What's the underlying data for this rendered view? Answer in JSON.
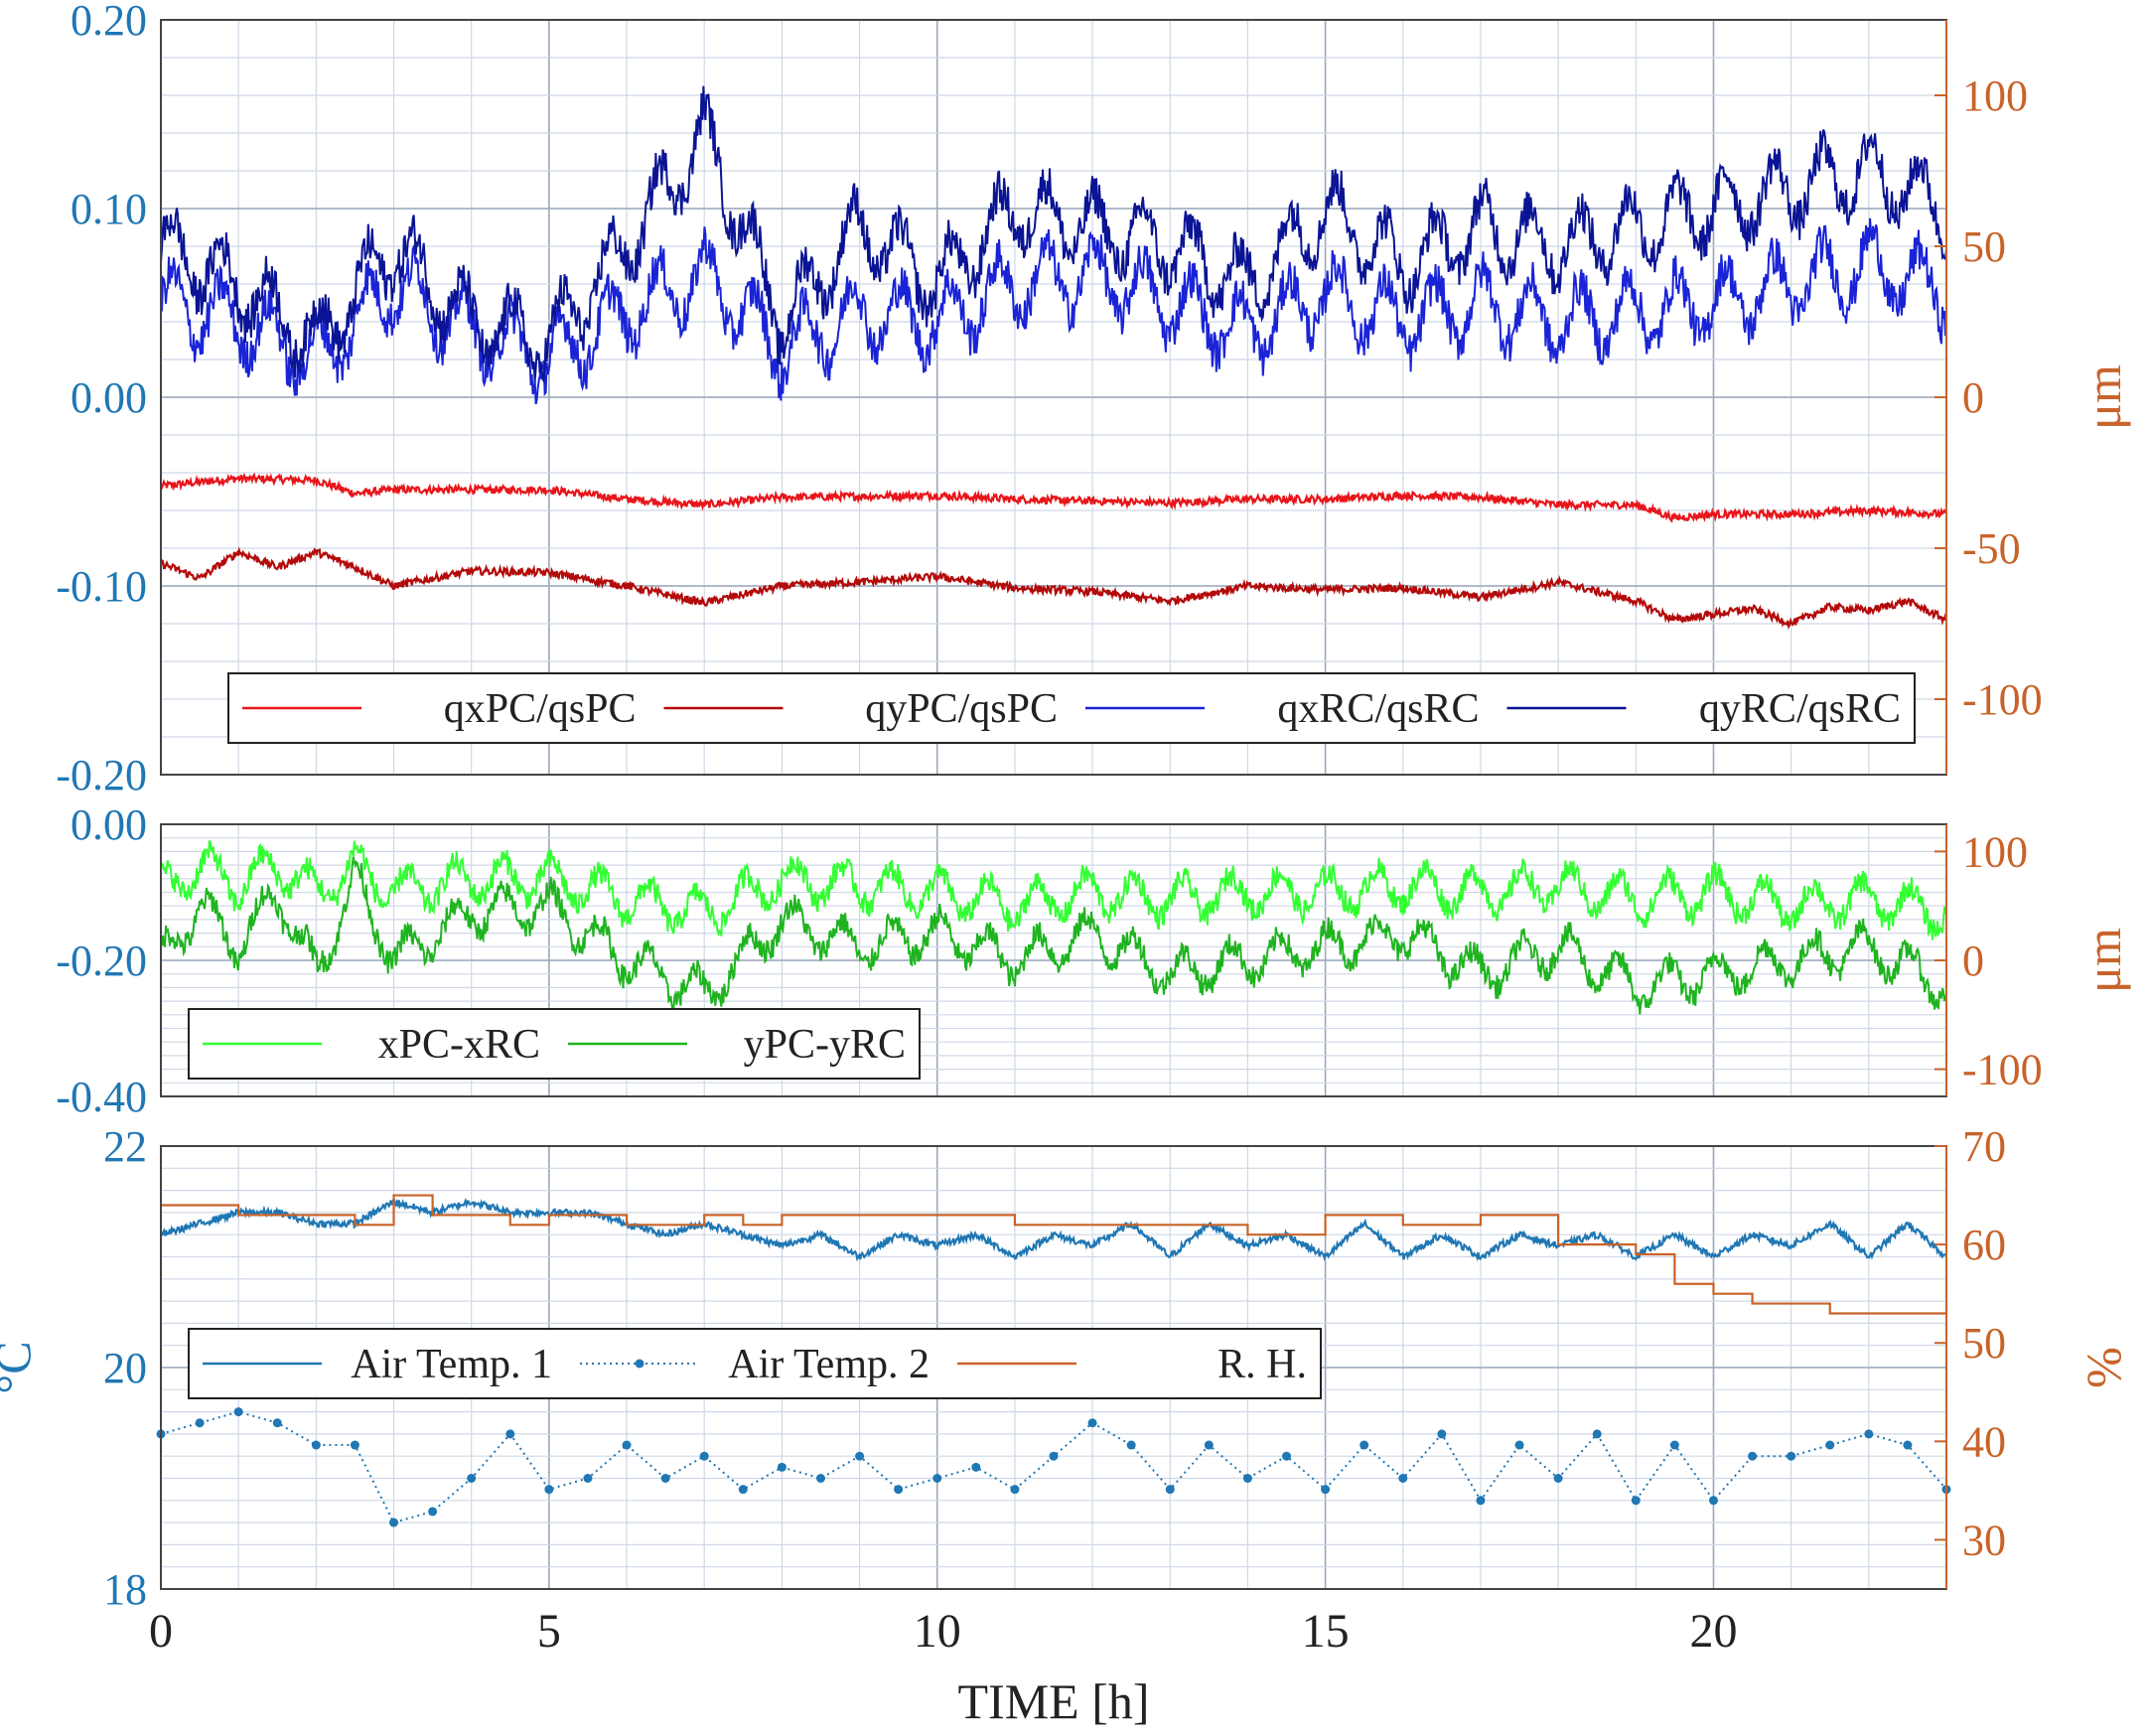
{
  "colors": {
    "left_axis": "#1f77b4",
    "right_axis": "#c8632a",
    "qxPC": "#e8151a",
    "qyPC": "#b30a0a",
    "qxRC": "#1a24d6",
    "qyRC": "#0a1494",
    "xPC_xRC": "#33ff33",
    "yPC_yRC": "#1fb41f",
    "air1": "#1f77b4",
    "air2": "#1f77b4",
    "rh": "#c8632a",
    "grid": "#cfd8e6"
  },
  "x_axis": {
    "label": "TIME [h]",
    "ticks": [
      "0",
      "5",
      "10",
      "15",
      "20"
    ],
    "range": [
      0,
      23
    ]
  },
  "chart_data": [
    {
      "type": "line",
      "panel": "top",
      "ylim_left": [
        -0.2,
        0.2
      ],
      "ylim_right": [
        -125,
        125
      ],
      "left_ticks": [
        "0.20",
        "0.10",
        "0.00",
        "-0.10",
        "-0.20"
      ],
      "right_ticks": [
        "100",
        "50",
        "0",
        "-50",
        "-100"
      ],
      "right_label": "μm",
      "legend": [
        "qxPC/qsPC",
        "qyPC/qsPC",
        "qxRC/qsRC",
        "qyRC/qsRC"
      ],
      "series": [
        {
          "name": "qxPC/qsPC",
          "x": [
            0,
            1,
            2,
            2.5,
            3,
            5,
            6,
            7,
            8,
            10,
            11,
            12,
            13,
            14,
            15,
            16,
            17,
            18,
            19,
            19.5,
            20,
            21,
            22,
            23
          ],
          "values": [
            -0.047,
            -0.043,
            -0.044,
            -0.051,
            -0.049,
            -0.049,
            -0.054,
            -0.057,
            -0.053,
            -0.052,
            -0.054,
            -0.055,
            -0.056,
            -0.054,
            -0.054,
            -0.052,
            -0.053,
            -0.057,
            -0.057,
            -0.064,
            -0.062,
            -0.062,
            -0.06,
            -0.062
          ]
        },
        {
          "name": "qyPC/qsPC",
          "x": [
            0,
            0.5,
            1,
            1.5,
            2,
            2.5,
            3,
            4,
            5,
            6,
            7,
            8,
            9,
            10,
            11,
            12,
            13,
            14,
            15,
            16,
            17,
            18,
            19,
            19.5,
            20,
            20.5,
            21,
            21.5,
            22,
            22.5,
            23
          ],
          "values": [
            -0.088,
            -0.096,
            -0.082,
            -0.09,
            -0.082,
            -0.09,
            -0.1,
            -0.092,
            -0.093,
            -0.1,
            -0.109,
            -0.1,
            -0.098,
            -0.095,
            -0.101,
            -0.103,
            -0.108,
            -0.1,
            -0.102,
            -0.101,
            -0.106,
            -0.098,
            -0.108,
            -0.118,
            -0.115,
            -0.112,
            -0.12,
            -0.111,
            -0.113,
            -0.108,
            -0.118
          ]
        },
        {
          "name": "qxRC/qsRC",
          "x": [
            0,
            1,
            2,
            3,
            4,
            5,
            6,
            7,
            8,
            9,
            10,
            11,
            12,
            13,
            14,
            15,
            16,
            17,
            18,
            19,
            20,
            21,
            22,
            23
          ],
          "values": [
            0.05,
            0.04,
            0.02,
            0.06,
            0.035,
            0.02,
            0.045,
            0.065,
            0.025,
            0.045,
            0.04,
            0.06,
            0.065,
            0.05,
            0.035,
            0.055,
            0.04,
            0.05,
            0.04,
            0.045,
            0.05,
            0.06,
            0.07,
            0.055
          ]
        },
        {
          "name": "qyRC/qsRC",
          "x": [
            0,
            1,
            2,
            3,
            4,
            5,
            6,
            7,
            8,
            9,
            10,
            11,
            12,
            13,
            14,
            15,
            16,
            17,
            18,
            19,
            20,
            21,
            22,
            23
          ],
          "values": [
            0.08,
            0.06,
            0.03,
            0.08,
            0.04,
            0.03,
            0.08,
            0.14,
            0.04,
            0.09,
            0.06,
            0.1,
            0.09,
            0.08,
            0.06,
            0.1,
            0.07,
            0.09,
            0.08,
            0.09,
            0.1,
            0.11,
            0.12,
            0.1
          ]
        }
      ]
    },
    {
      "type": "line",
      "panel": "middle",
      "ylim_left": [
        -0.4,
        0.0
      ],
      "ylim_right": [
        -125,
        125
      ],
      "left_ticks": [
        "0.00",
        "-0.20",
        "-0.40"
      ],
      "right_ticks": [
        "100",
        "0",
        "-100"
      ],
      "right_label": "μm",
      "legend": [
        "xPC-xRC",
        "yPC-yRC"
      ],
      "series": [
        {
          "name": "xPC-xRC",
          "x": [
            0,
            0.5,
            1,
            1.5,
            2,
            2.5,
            3,
            4,
            5,
            6,
            7,
            8,
            9,
            10,
            11,
            12,
            13,
            14,
            15,
            16,
            17,
            18,
            19,
            20,
            21,
            22,
            23
          ],
          "values": [
            -0.1,
            -0.06,
            -0.09,
            -0.06,
            -0.1,
            -0.06,
            -0.1,
            -0.08,
            -0.08,
            -0.11,
            -0.13,
            -0.08,
            -0.09,
            -0.1,
            -0.12,
            -0.1,
            -0.11,
            -0.1,
            -0.1,
            -0.09,
            -0.1,
            -0.09,
            -0.11,
            -0.1,
            -0.12,
            -0.11,
            -0.13
          ]
        },
        {
          "name": "yPC-yRC",
          "x": [
            0,
            0.5,
            1,
            1.5,
            2,
            2.5,
            3,
            4,
            5,
            6,
            7,
            8,
            9,
            10,
            11,
            12,
            13,
            14,
            15,
            16,
            17,
            18,
            19,
            20,
            21,
            22,
            23
          ],
          "values": [
            -0.2,
            -0.12,
            -0.18,
            -0.1,
            -0.22,
            -0.08,
            -0.2,
            -0.13,
            -0.12,
            -0.2,
            -0.25,
            -0.14,
            -0.18,
            -0.16,
            -0.2,
            -0.16,
            -0.22,
            -0.2,
            -0.18,
            -0.16,
            -0.22,
            -0.18,
            -0.24,
            -0.22,
            -0.2,
            -0.18,
            -0.24
          ]
        }
      ]
    },
    {
      "type": "line",
      "panel": "bottom",
      "ylim_left": [
        18,
        22
      ],
      "ylim_right": [
        25,
        70
      ],
      "left_ticks": [
        "22",
        "20",
        "18"
      ],
      "right_ticks": [
        "70",
        "60",
        "50",
        "40",
        "30"
      ],
      "left_label": "°C",
      "right_label": "%",
      "legend": [
        "Air Temp. 1",
        "Air Temp. 2",
        "R. H."
      ],
      "series": [
        {
          "name": "Air Temp. 1",
          "x": [
            0,
            0.5,
            1,
            1.5,
            2,
            2.5,
            3,
            3.5,
            4,
            4.5,
            5,
            5.5,
            6,
            6.5,
            7,
            7.5,
            8,
            8.5,
            9,
            9.5,
            10,
            10.5,
            11,
            11.5,
            12,
            12.5,
            13,
            13.5,
            14,
            14.5,
            15,
            15.5,
            16,
            16.5,
            17,
            17.5,
            18,
            18.5,
            19,
            19.5,
            20,
            20.5,
            21,
            21.5,
            22,
            22.5,
            23
          ],
          "values": [
            21.2,
            21.3,
            21.4,
            21.4,
            21.3,
            21.3,
            21.5,
            21.4,
            21.5,
            21.4,
            21.4,
            21.4,
            21.3,
            21.2,
            21.3,
            21.2,
            21.1,
            21.2,
            21.0,
            21.2,
            21.1,
            21.2,
            21.0,
            21.2,
            21.1,
            21.3,
            21.0,
            21.3,
            21.1,
            21.2,
            21.0,
            21.3,
            21.0,
            21.2,
            21.0,
            21.2,
            21.1,
            21.2,
            21.0,
            21.2,
            21.0,
            21.2,
            21.1,
            21.3,
            21.0,
            21.3,
            21.0
          ]
        },
        {
          "name": "Air Temp. 2",
          "x": [
            0,
            0.5,
            1,
            1.5,
            2,
            2.5,
            3,
            3.5,
            4,
            4.5,
            5,
            5.5,
            6,
            6.5,
            7,
            7.5,
            8,
            8.5,
            9,
            9.5,
            10,
            10.5,
            11,
            11.5,
            12,
            12.5,
            13,
            13.5,
            14,
            14.5,
            15,
            15.5,
            16,
            16.5,
            17,
            17.5,
            18,
            18.5,
            19,
            19.5,
            20,
            20.5,
            21,
            21.5,
            22,
            22.5,
            23
          ],
          "values": [
            19.4,
            19.5,
            19.6,
            19.5,
            19.3,
            19.3,
            18.6,
            18.7,
            19.0,
            19.4,
            18.9,
            19.0,
            19.3,
            19.0,
            19.2,
            18.9,
            19.1,
            19.0,
            19.2,
            18.9,
            19.0,
            19.1,
            18.9,
            19.2,
            19.5,
            19.3,
            18.9,
            19.3,
            19.0,
            19.2,
            18.9,
            19.3,
            19.0,
            19.4,
            18.8,
            19.3,
            19.0,
            19.4,
            18.8,
            19.3,
            18.8,
            19.2,
            19.2,
            19.3,
            19.4,
            19.3,
            18.9
          ]
        },
        {
          "name": "R. H.",
          "x": [
            0,
            1,
            2,
            2.5,
            3,
            3.5,
            4,
            4.5,
            5,
            5.5,
            6,
            6.5,
            7,
            7.5,
            8,
            9,
            10,
            11,
            12,
            13,
            14,
            15,
            16,
            17,
            18,
            18.5,
            19,
            19.5,
            20,
            20.5,
            21,
            21.5,
            22,
            22.5,
            23
          ],
          "values": [
            64,
            63,
            63,
            62,
            65,
            63,
            63,
            62,
            63,
            63,
            62,
            62,
            63,
            62,
            63,
            63,
            63,
            62,
            62,
            62,
            61,
            63,
            62,
            63,
            60,
            60,
            59,
            56,
            55,
            54,
            54,
            53,
            53,
            53,
            54
          ]
        }
      ]
    }
  ]
}
